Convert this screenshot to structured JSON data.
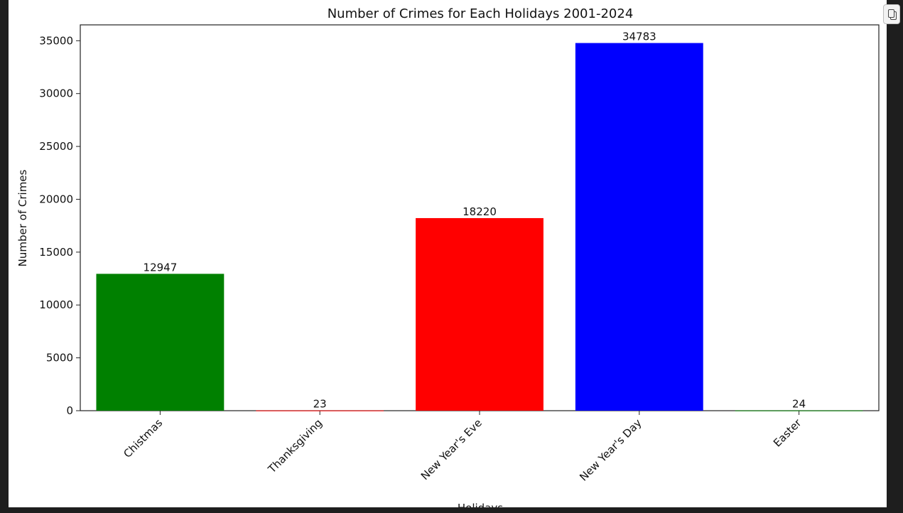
{
  "chart_data": {
    "type": "bar",
    "title": "Number of Crimes for Each Holidays 2001-2024",
    "xlabel": "Holidays",
    "ylabel": "Number of Crimes",
    "categories": [
      "Chistmas",
      "Thanksgiving",
      "New Year's Eve",
      "New Year's Day",
      "Easter"
    ],
    "values": [
      12947,
      23,
      18220,
      34783,
      24
    ],
    "data_labels": [
      "12947",
      "23",
      "18220",
      "34783",
      "24"
    ],
    "colors": [
      "#008000",
      "#ff0000",
      "#ff0000",
      "#0000ff",
      "#008000"
    ],
    "ylim": [
      0,
      36500
    ],
    "yticks": [
      0,
      5000,
      10000,
      15000,
      20000,
      25000,
      30000,
      35000
    ],
    "grid": false,
    "legend": "none"
  },
  "toolbar": {
    "copy_icon": "copy-icon"
  }
}
